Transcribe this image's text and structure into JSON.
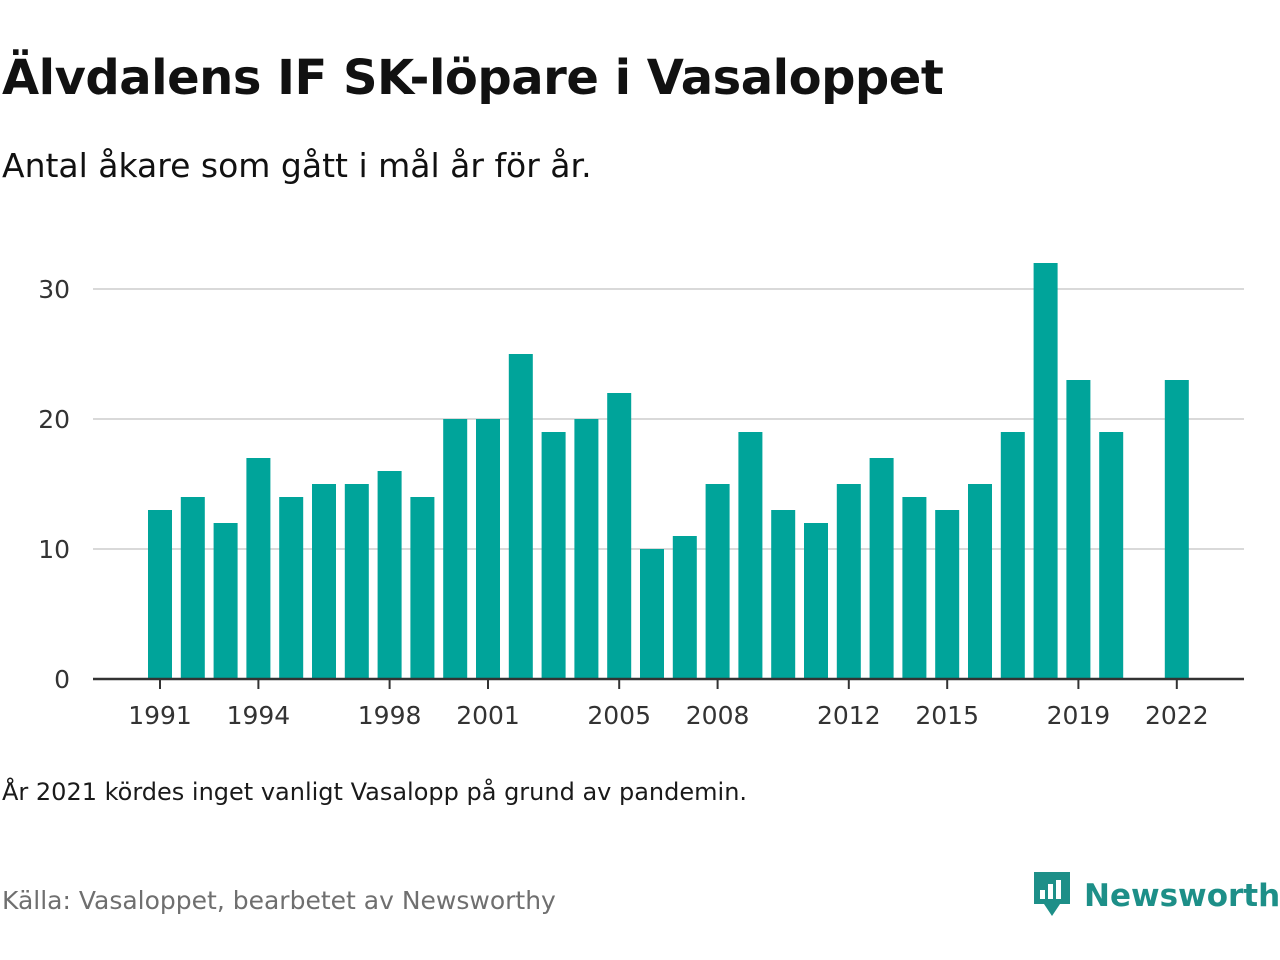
{
  "header": {
    "title": "Älvdalens IF SK-löpare i Vasaloppet",
    "subtitle": "Antal åkare som gått i mål år för år."
  },
  "footer": {
    "note": "År 2021 kördes inget vanligt Vasalopp på grund av pandemin.",
    "source": "Källa: Vasaloppet, bearbetet av Newsworthy",
    "brand": "Newsworthy",
    "brand_icon": "newsworthy-logo-icon",
    "brand_color": "#1d8f88"
  },
  "chart_data": {
    "type": "bar",
    "categories": [
      "1991",
      "1992",
      "1993",
      "1994",
      "1995",
      "1996",
      "1997",
      "1998",
      "1999",
      "2000",
      "2001",
      "2002",
      "2003",
      "2004",
      "2005",
      "2006",
      "2007",
      "2008",
      "2009",
      "2010",
      "2011",
      "2012",
      "2013",
      "2014",
      "2015",
      "2016",
      "2017",
      "2018",
      "2019",
      "2020",
      "2021",
      "2022"
    ],
    "values": [
      13,
      14,
      12,
      17,
      14,
      15,
      15,
      16,
      14,
      20,
      20,
      25,
      19,
      20,
      22,
      10,
      11,
      15,
      19,
      13,
      12,
      15,
      17,
      14,
      13,
      15,
      19,
      32,
      23,
      19,
      null,
      23
    ],
    "x_tick_labels": [
      "1991",
      "1994",
      "1998",
      "2001",
      "2005",
      "2008",
      "2012",
      "2015",
      "2019",
      "2022"
    ],
    "y_ticks": [
      0,
      10,
      20,
      30
    ],
    "ylim": [
      0,
      33
    ],
    "grid": true,
    "bar_color": "#00a49a",
    "grid_color": "#d9d9d9",
    "axis_color": "#333333"
  }
}
